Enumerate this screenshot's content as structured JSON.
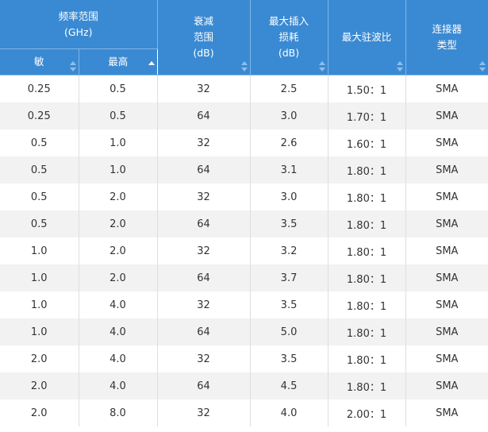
{
  "table": {
    "headers": {
      "freq_group": [
        "频率范围",
        "(GHz)"
      ],
      "freq_min": "敏",
      "freq_max": "最高",
      "atten": [
        "衰减",
        "范围",
        "(dB)"
      ],
      "loss": [
        "最大插入",
        "损耗",
        "(dB)"
      ],
      "vswr": "最大驻波比",
      "connector": [
        "连接器",
        "类型"
      ]
    },
    "sort_state": {
      "freq_max": "ascending"
    },
    "rows": [
      [
        "0.25",
        "0.5",
        "32",
        "2.5",
        "1.50：1",
        "SMA"
      ],
      [
        "0.25",
        "0.5",
        "64",
        "3.0",
        "1.70：1",
        "SMA"
      ],
      [
        "0.5",
        "1.0",
        "32",
        "2.6",
        "1.60：1",
        "SMA"
      ],
      [
        "0.5",
        "1.0",
        "64",
        "3.1",
        "1.80：1",
        "SMA"
      ],
      [
        "0.5",
        "2.0",
        "32",
        "3.0",
        "1.80：1",
        "SMA"
      ],
      [
        "0.5",
        "2.0",
        "64",
        "3.5",
        "1.80：1",
        "SMA"
      ],
      [
        "1.0",
        "2.0",
        "32",
        "3.2",
        "1.80：1",
        "SMA"
      ],
      [
        "1.0",
        "2.0",
        "64",
        "3.7",
        "1.80：1",
        "SMA"
      ],
      [
        "1.0",
        "4.0",
        "32",
        "3.5",
        "1.80：1",
        "SMA"
      ],
      [
        "1.0",
        "4.0",
        "64",
        "5.0",
        "1.80：1",
        "SMA"
      ],
      [
        "2.0",
        "4.0",
        "32",
        "3.5",
        "1.80：1",
        "SMA"
      ],
      [
        "2.0",
        "4.0",
        "64",
        "4.5",
        "1.80：1",
        "SMA"
      ],
      [
        "2.0",
        "8.0",
        "32",
        "4.0",
        "2.00：1",
        "SMA"
      ]
    ]
  }
}
